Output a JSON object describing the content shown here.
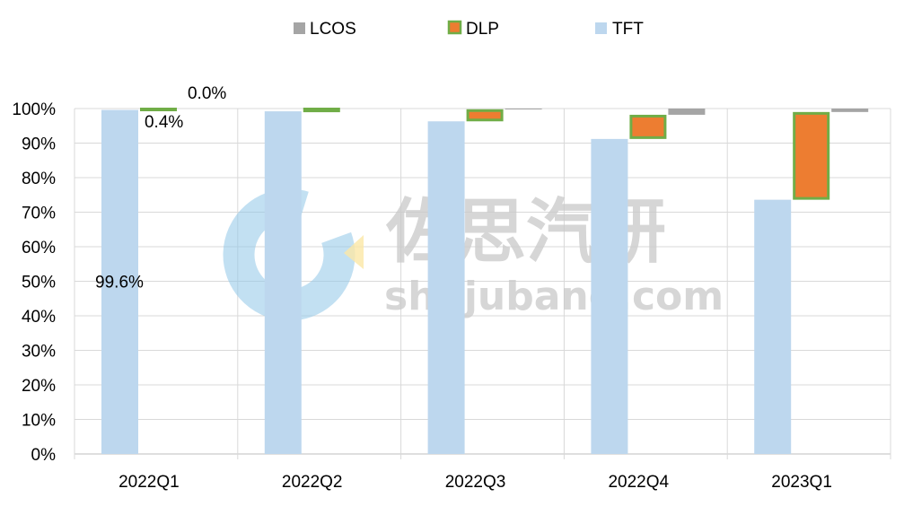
{
  "chart_data": {
    "type": "bar",
    "stacked": true,
    "categories": [
      "2022Q1",
      "2022Q2",
      "2022Q3",
      "2022Q4",
      "2023Q1"
    ],
    "series": [
      {
        "name": "TFT",
        "values": [
          99.6,
          99.2,
          96.3,
          91.2,
          73.6
        ],
        "color": "#bdd7ee"
      },
      {
        "name": "DLP",
        "values": [
          0.4,
          0.8,
          3.5,
          7.0,
          25.4
        ],
        "color": "#ed7d31",
        "border": "#70ad47"
      },
      {
        "name": "LCOS",
        "values": [
          0.0,
          0.0,
          0.2,
          1.8,
          1.0
        ],
        "color": "#a5a5a5"
      }
    ],
    "legend_order": [
      "LCOS",
      "DLP",
      "TFT"
    ],
    "legend_position": "top",
    "data_labels": [
      {
        "category": "2022Q1",
        "series": "TFT",
        "text": "99.6%"
      },
      {
        "category": "2022Q1",
        "series": "DLP",
        "text": "0.4%"
      },
      {
        "category": "2022Q1",
        "series": "LCOS",
        "text": "0.0%"
      }
    ],
    "y_ticks": [
      "0%",
      "10%",
      "20%",
      "30%",
      "40%",
      "50%",
      "60%",
      "70%",
      "80%",
      "90%",
      "100%"
    ],
    "ylim": [
      0,
      100
    ],
    "grid": true,
    "title": "",
    "xlabel": "",
    "ylabel": ""
  },
  "watermark": {
    "cn": "佐思汽研",
    "url": "shujubang.com",
    "icon": "logo-c-icon"
  }
}
